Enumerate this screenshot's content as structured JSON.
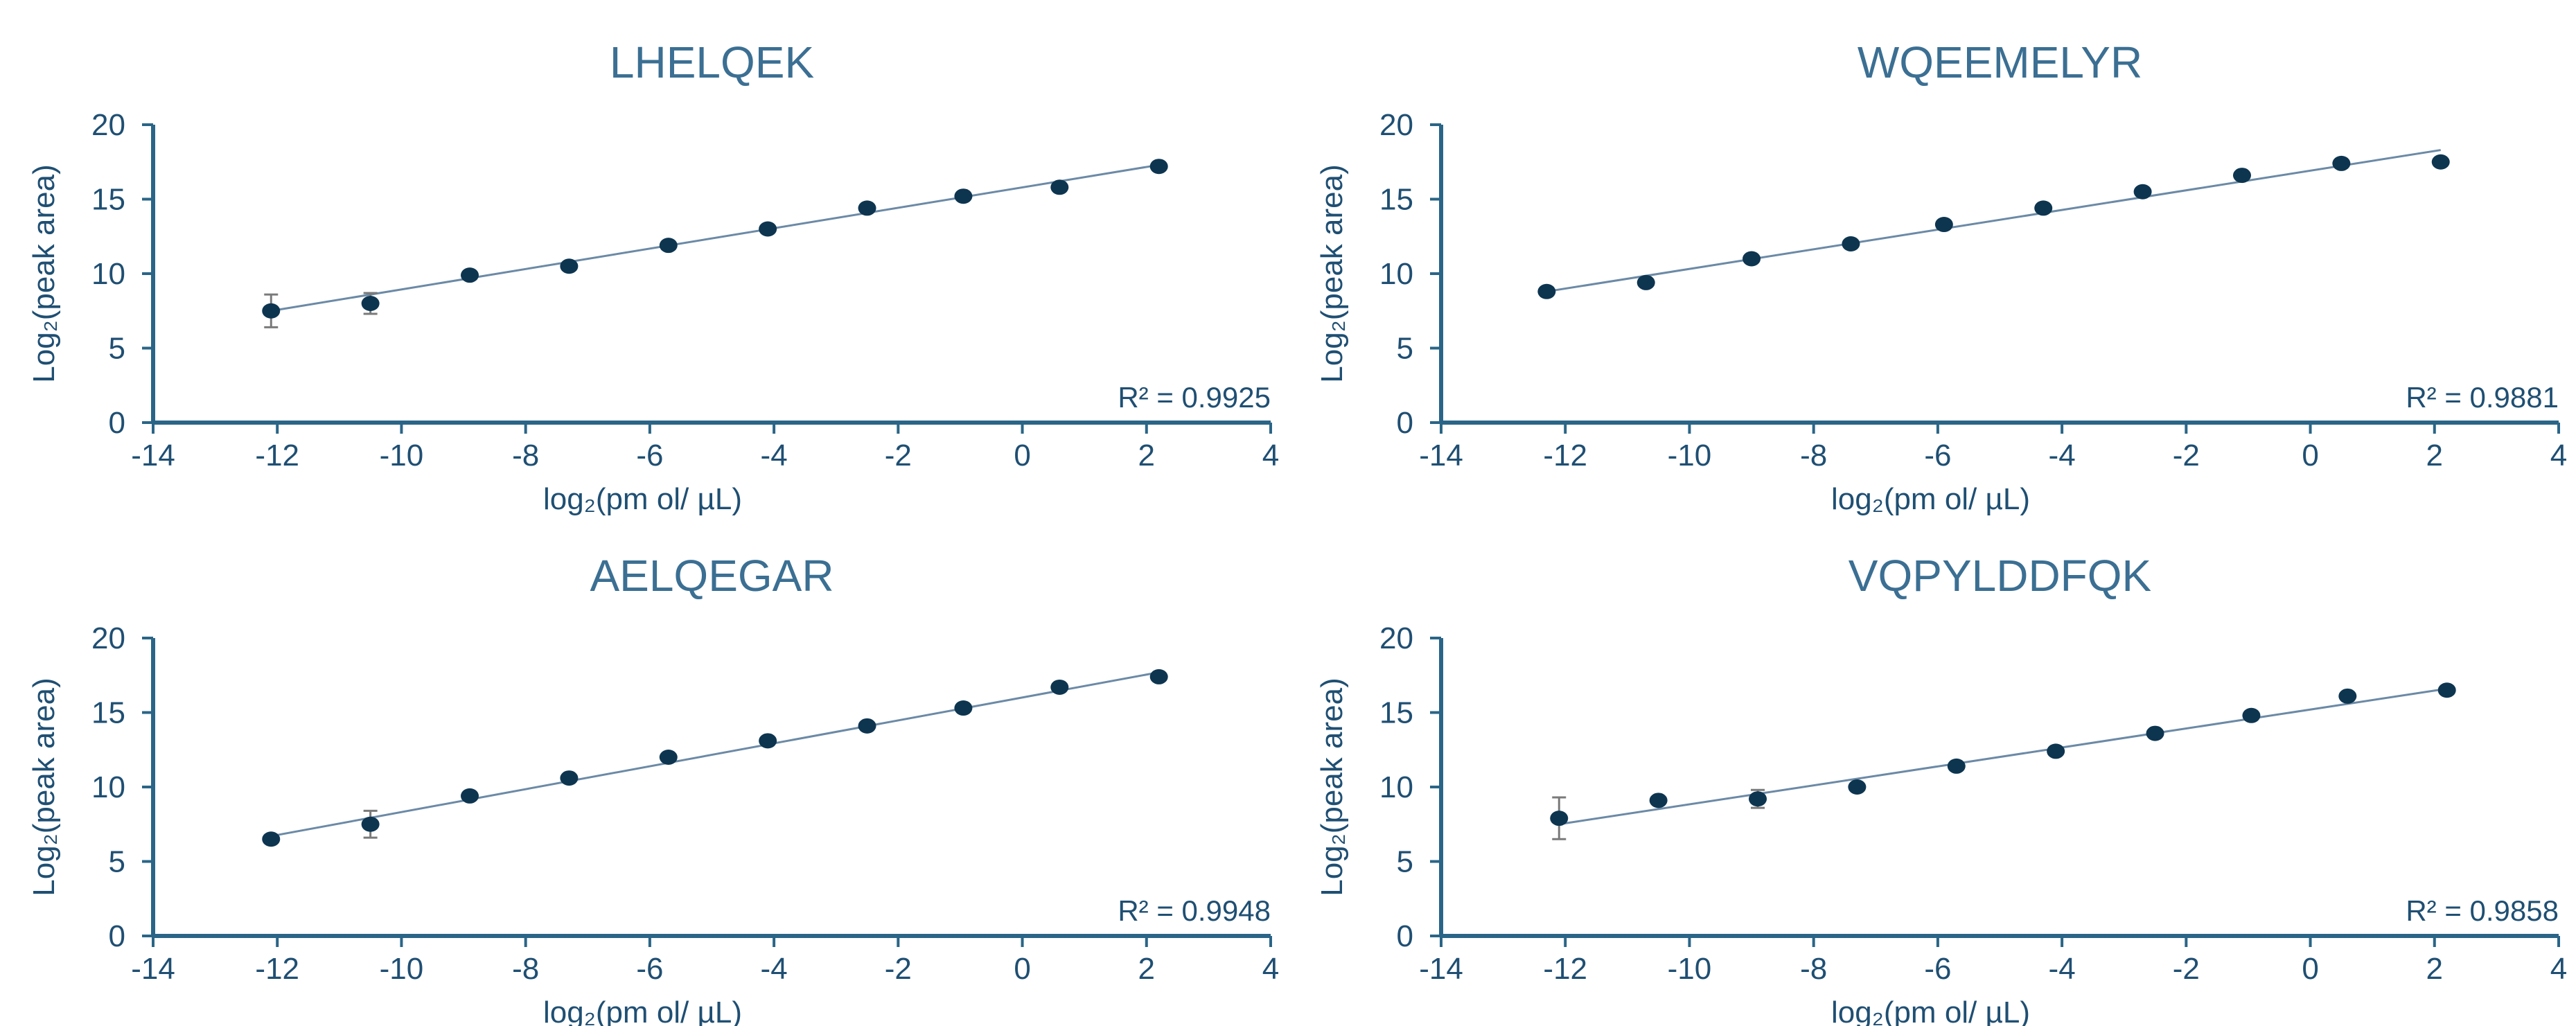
{
  "colors": {
    "axis": "#2a6587",
    "text": "#1f4f73",
    "title": "#3b6f93",
    "point": "#0d3550",
    "fit": "#6b8aa6"
  },
  "chart_data": [
    {
      "type": "scatter",
      "title": "LHELQEK",
      "xlabel": "log₂(pm ol/ µL)",
      "ylabel": "Log₂(peak area)",
      "xlim": [
        -14,
        4
      ],
      "ylim": [
        0,
        20
      ],
      "xticks": [
        -14,
        -12,
        -10,
        -8,
        -6,
        -4,
        -2,
        0,
        2,
        4
      ],
      "yticks": [
        0,
        5,
        10,
        15,
        20
      ],
      "r2_text": "R² = 0.9925",
      "fit": {
        "x": [
          -12.1,
          2.2
        ],
        "y": [
          7.5,
          17.3
        ]
      },
      "x": [
        -12.1,
        -10.5,
        -8.9,
        -7.3,
        -5.7,
        -4.1,
        -2.5,
        -0.95,
        0.6,
        2.2
      ],
      "y": [
        7.5,
        8.0,
        9.9,
        10.5,
        11.9,
        13.0,
        14.4,
        15.2,
        15.8,
        17.2
      ],
      "errors": [
        1.1,
        0.7,
        0.3,
        0.3,
        0.3,
        0.3,
        0.4,
        0.5,
        0.3,
        0.2
      ]
    },
    {
      "type": "scatter",
      "title": "WQEEMELYR",
      "xlabel": "log₂(pm ol/ µL)",
      "ylabel": "Log₂(peak area)",
      "xlim": [
        -14,
        4
      ],
      "ylim": [
        0,
        20
      ],
      "xticks": [
        -14,
        -12,
        -10,
        -8,
        -6,
        -4,
        -2,
        0,
        2,
        4
      ],
      "yticks": [
        0,
        5,
        10,
        15,
        20
      ],
      "r2_text": "R² = 0.9881",
      "fit": {
        "x": [
          -12.3,
          2.1
        ],
        "y": [
          8.8,
          18.3
        ]
      },
      "x": [
        -12.3,
        -10.7,
        -9.0,
        -7.4,
        -5.9,
        -4.3,
        -2.7,
        -1.1,
        0.5,
        2.1
      ],
      "y": [
        8.8,
        9.4,
        11.0,
        12.0,
        13.3,
        14.4,
        15.5,
        16.6,
        17.4,
        17.5
      ],
      "errors": [
        0.2,
        0.2,
        0.2,
        0.2,
        0.2,
        0.2,
        0.2,
        0.2,
        0.2,
        0.2
      ]
    },
    {
      "type": "scatter",
      "title": "AELQEGAR",
      "xlabel": "log₂(pm ol/ µL)",
      "ylabel": "Log₂(peak area)",
      "xlim": [
        -14,
        4
      ],
      "ylim": [
        0,
        20
      ],
      "xticks": [
        -14,
        -12,
        -10,
        -8,
        -6,
        -4,
        -2,
        0,
        2,
        4
      ],
      "yticks": [
        0,
        5,
        10,
        15,
        20
      ],
      "r2_text": "R² = 0.9948",
      "fit": {
        "x": [
          -12.1,
          2.2
        ],
        "y": [
          6.7,
          17.7
        ]
      },
      "x": [
        -12.1,
        -10.5,
        -8.9,
        -7.3,
        -5.7,
        -4.1,
        -2.5,
        -0.95,
        0.6,
        2.2
      ],
      "y": [
        6.5,
        7.5,
        9.4,
        10.6,
        12.0,
        13.1,
        14.1,
        15.3,
        16.7,
        17.4
      ],
      "errors": [
        0.5,
        0.9,
        0.3,
        0.3,
        0.3,
        0.3,
        0.3,
        0.3,
        0.3,
        0.3
      ]
    },
    {
      "type": "scatter",
      "title": "VQPYLDDFQK",
      "xlabel": "log₂(pm ol/ µL)",
      "ylabel": "Log₂(peak area)",
      "xlim": [
        -14,
        4
      ],
      "ylim": [
        0,
        20
      ],
      "xticks": [
        -14,
        -12,
        -10,
        -8,
        -6,
        -4,
        -2,
        0,
        2,
        4
      ],
      "yticks": [
        0,
        5,
        10,
        15,
        20
      ],
      "r2_text": "R² = 0.9858",
      "fit": {
        "x": [
          -12.1,
          2.2
        ],
        "y": [
          7.5,
          16.6
        ]
      },
      "x": [
        -12.1,
        -10.5,
        -8.9,
        -7.3,
        -5.7,
        -4.1,
        -2.5,
        -0.95,
        0.6,
        2.2
      ],
      "y": [
        7.9,
        9.1,
        9.2,
        10.0,
        11.4,
        12.4,
        13.6,
        14.8,
        16.1,
        16.5
      ],
      "errors": [
        1.4,
        0.4,
        0.6,
        0.3,
        0.3,
        0.3,
        0.3,
        0.3,
        0.3,
        0.2
      ]
    }
  ]
}
